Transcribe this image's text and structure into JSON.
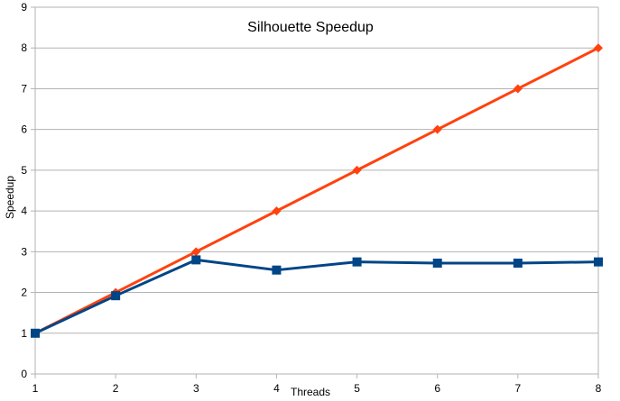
{
  "chart_data": {
    "type": "line",
    "title": "Silhouette Speedup",
    "xlabel": "Threads",
    "ylabel": "Speedup",
    "x": [
      1,
      2,
      3,
      4,
      5,
      6,
      7,
      8
    ],
    "xlim": [
      1,
      8
    ],
    "ylim": [
      0,
      9
    ],
    "yticks": [
      0,
      1,
      2,
      3,
      4,
      5,
      6,
      7,
      8,
      9
    ],
    "xticks": [
      1,
      2,
      3,
      4,
      5,
      6,
      7,
      8
    ],
    "grid": "horizontal",
    "legend": "none",
    "series": [
      {
        "values": [
          1,
          2,
          3,
          4,
          5,
          6,
          7,
          8
        ],
        "color": "#ff420e",
        "marker": "diamond"
      },
      {
        "values": [
          1,
          1.92,
          2.8,
          2.55,
          2.75,
          2.72,
          2.72,
          2.75
        ],
        "color": "#004586",
        "marker": "square"
      }
    ]
  }
}
